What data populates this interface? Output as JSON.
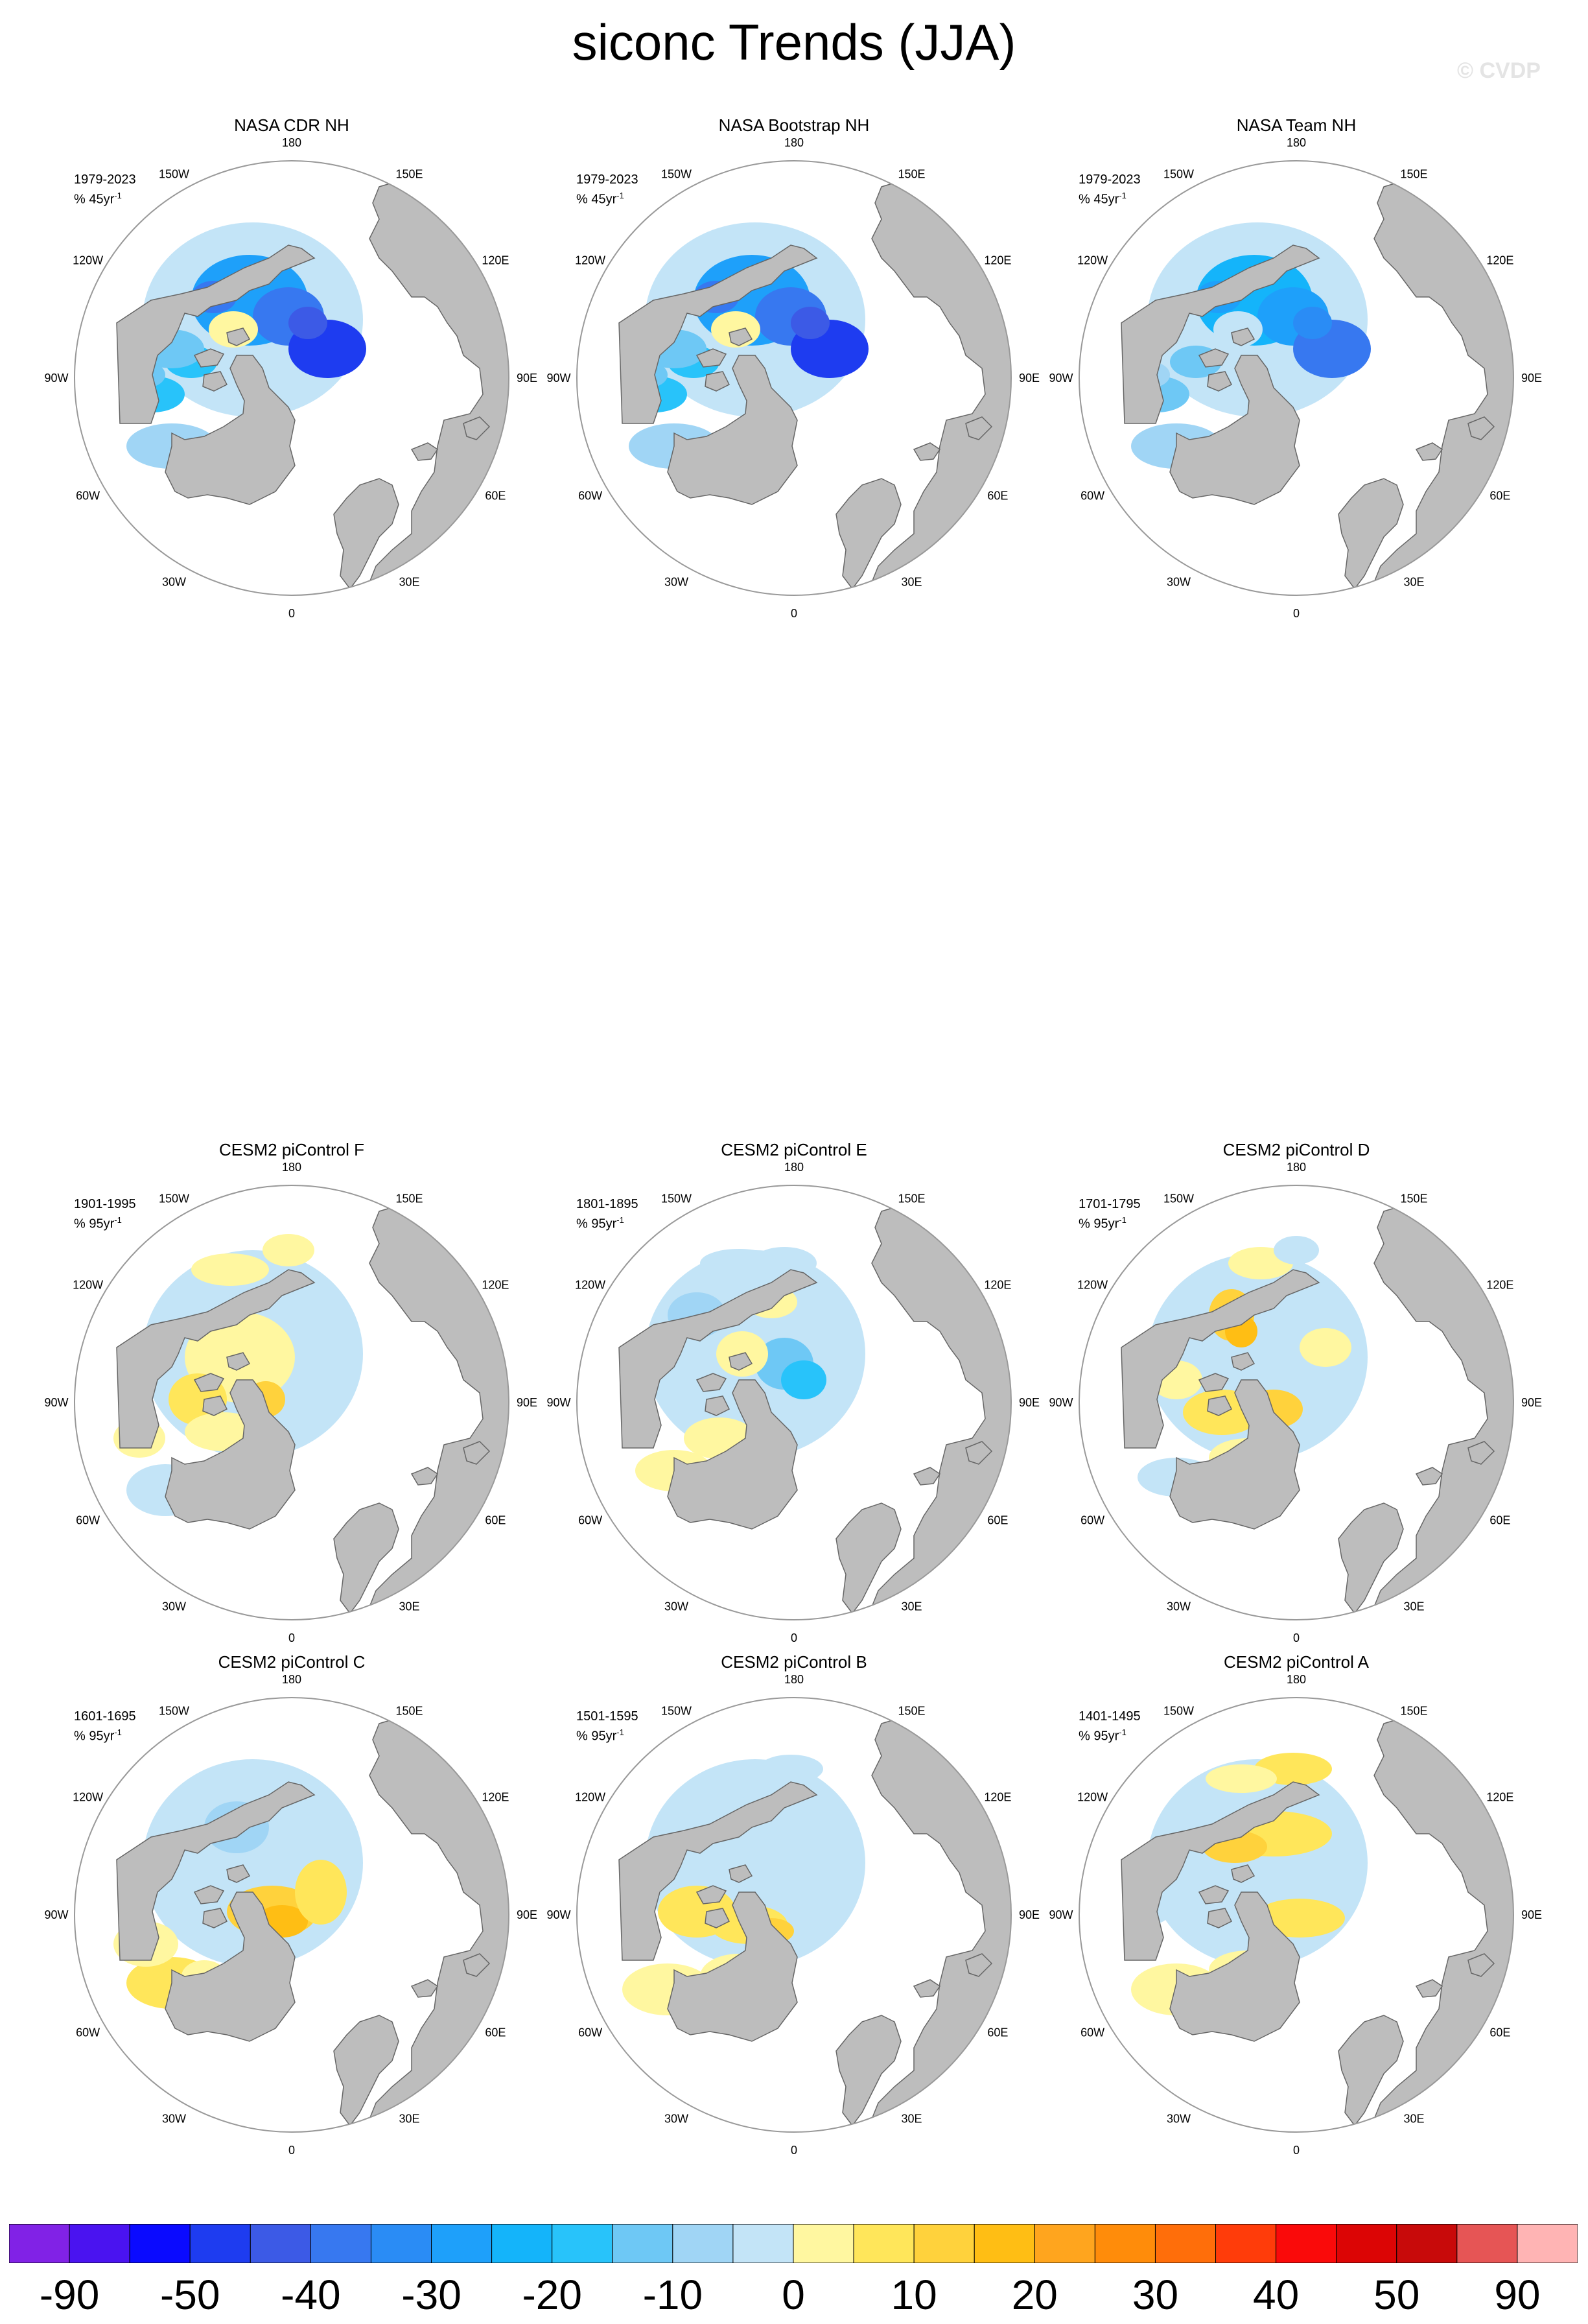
{
  "title": "siconc Trends (JJA)",
  "copyright": "© CVDP",
  "longitude_labels": [
    "180",
    "150E",
    "120E",
    "90E",
    "60E",
    "30E",
    "0",
    "30W",
    "60W",
    "90W",
    "120W",
    "150W"
  ],
  "colors": {
    "land": "#bdbdbd",
    "coastline": "#666666",
    "map_border": "#999999"
  },
  "panels": [
    {
      "title": "NASA CDR NH",
      "period": "1979-2023",
      "unit": "% 45yr",
      "unit_exp": "-1",
      "pattern": "obs"
    },
    {
      "title": "NASA Bootstrap NH",
      "period": "1979-2023",
      "unit": "% 45yr",
      "unit_exp": "-1",
      "pattern": "obs"
    },
    {
      "title": "NASA Team NH",
      "period": "1979-2023",
      "unit": "% 45yr",
      "unit_exp": "-1",
      "pattern": "obs_team"
    },
    {
      "title": "CESM2 piControl F",
      "period": "1901-1995",
      "unit": "% 95yr",
      "unit_exp": "-1",
      "pattern": "F"
    },
    {
      "title": "CESM2 piControl E",
      "period": "1801-1895",
      "unit": "% 95yr",
      "unit_exp": "-1",
      "pattern": "E"
    },
    {
      "title": "CESM2 piControl D",
      "period": "1701-1795",
      "unit": "% 95yr",
      "unit_exp": "-1",
      "pattern": "D"
    },
    {
      "title": "CESM2 piControl C",
      "period": "1601-1695",
      "unit": "% 95yr",
      "unit_exp": "-1",
      "pattern": "C"
    },
    {
      "title": "CESM2 piControl B",
      "period": "1501-1595",
      "unit": "% 95yr",
      "unit_exp": "-1",
      "pattern": "B"
    },
    {
      "title": "CESM2 piControl A",
      "period": "1401-1495",
      "unit": "% 95yr",
      "unit_exp": "-1",
      "pattern": "A"
    }
  ],
  "colorbar": {
    "colors": [
      "#8122e6",
      "#4a13f0",
      "#0a0aff",
      "#1e3cf0",
      "#3c5ae6",
      "#3778f0",
      "#2a8cf5",
      "#1ea0fa",
      "#14b4fa",
      "#28c3fa",
      "#6ec8f5",
      "#a0d5f5",
      "#c3e4f7",
      "#fff7a0",
      "#ffe65a",
      "#ffd23c",
      "#ffbe14",
      "#ffa51e",
      "#ff8c0a",
      "#ff6e0a",
      "#ff3c0a",
      "#fa0a0a",
      "#dc0505",
      "#c80a0a",
      "#e65555",
      "#ffb4b4"
    ],
    "labels": [
      "-90",
      "-50",
      "-40",
      "-30",
      "-20",
      "-10",
      "0",
      "10",
      "20",
      "30",
      "40",
      "50",
      "90"
    ]
  }
}
